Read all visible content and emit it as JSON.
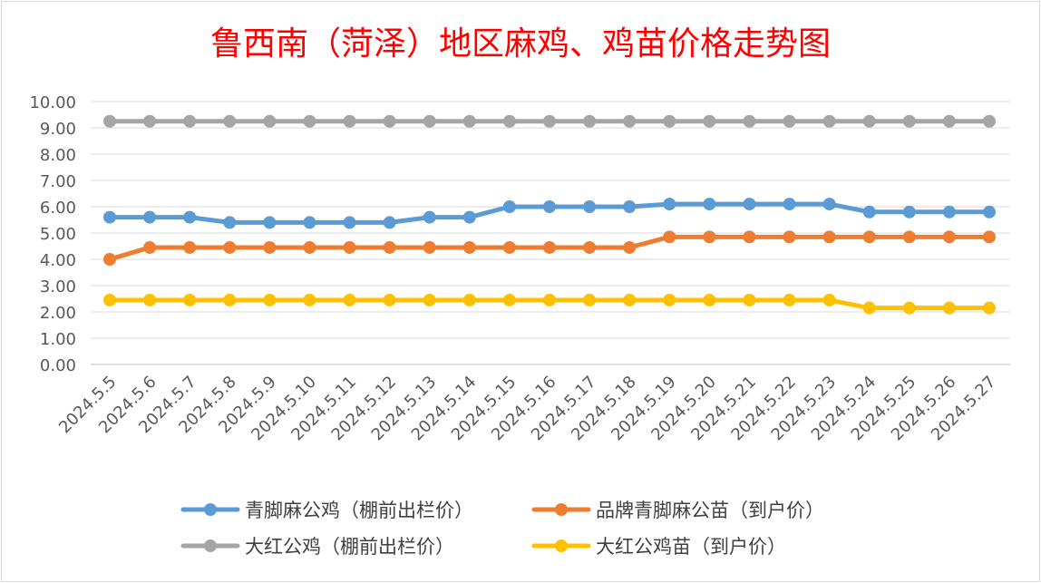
{
  "chart_data": {
    "type": "line",
    "title": "鲁西南（菏泽）地区麻鸡、鸡苗价格走势图",
    "xlabel": "",
    "ylabel": "",
    "ylim": [
      0,
      10
    ],
    "y_ticks": [
      "0.00",
      "1.00",
      "2.00",
      "3.00",
      "4.00",
      "5.00",
      "6.00",
      "7.00",
      "8.00",
      "9.00",
      "10.00"
    ],
    "grid": true,
    "legend_position": "bottom",
    "categories": [
      "2024.5.5",
      "2024.5.6",
      "2024.5.7",
      "2024.5.8",
      "2024.5.9",
      "2024.5.10",
      "2024.5.11",
      "2024.5.12",
      "2024.5.13",
      "2024.5.14",
      "2024.5.15",
      "2024.5.16",
      "2024.5.17",
      "2024.5.18",
      "2024.5.19",
      "2024.5.20",
      "2024.5.21",
      "2024.5.22",
      "2024.5.23",
      "2024.5.24",
      "2024.5.25",
      "2024.5.26",
      "2024.5.27"
    ],
    "series": [
      {
        "name": "青脚麻公鸡（棚前出栏价）",
        "color": "#5b9bd5",
        "values": [
          5.6,
          5.6,
          5.6,
          5.4,
          5.4,
          5.4,
          5.4,
          5.4,
          5.6,
          5.6,
          6.0,
          6.0,
          6.0,
          6.0,
          6.1,
          6.1,
          6.1,
          6.1,
          6.1,
          5.8,
          5.8,
          5.8,
          5.8
        ]
      },
      {
        "name": "品牌青脚麻公苗（到户价）",
        "color": "#ed7d31",
        "values": [
          4.0,
          4.45,
          4.45,
          4.45,
          4.45,
          4.45,
          4.45,
          4.45,
          4.45,
          4.45,
          4.45,
          4.45,
          4.45,
          4.45,
          4.85,
          4.85,
          4.85,
          4.85,
          4.85,
          4.85,
          4.85,
          4.85,
          4.85
        ]
      },
      {
        "name": "大红公鸡（棚前出栏价）",
        "color": "#a5a5a5",
        "values": [
          9.25,
          9.25,
          9.25,
          9.25,
          9.25,
          9.25,
          9.25,
          9.25,
          9.25,
          9.25,
          9.25,
          9.25,
          9.25,
          9.25,
          9.25,
          9.25,
          9.25,
          9.25,
          9.25,
          9.25,
          9.25,
          9.25,
          9.25
        ]
      },
      {
        "name": "大红公鸡苗（到户价）",
        "color": "#ffc000",
        "values": [
          2.45,
          2.45,
          2.45,
          2.45,
          2.45,
          2.45,
          2.45,
          2.45,
          2.45,
          2.45,
          2.45,
          2.45,
          2.45,
          2.45,
          2.45,
          2.45,
          2.45,
          2.45,
          2.45,
          2.15,
          2.15,
          2.15,
          2.15
        ]
      }
    ]
  }
}
